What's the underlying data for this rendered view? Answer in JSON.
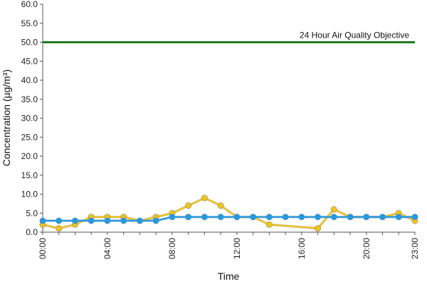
{
  "chart_data": {
    "type": "line",
    "title": "",
    "xlabel": "Time",
    "ylabel": "Concentration (µg/m³)",
    "ylim": [
      0,
      60
    ],
    "yticks": [
      "0.0",
      "5.0",
      "10.0",
      "15.0",
      "20.0",
      "25.0",
      "30.0",
      "35.0",
      "40.0",
      "45.0",
      "50.0",
      "55.0",
      "60.0"
    ],
    "xticks": [
      {
        "hour": 0,
        "label": "00:00"
      },
      {
        "hour": 4,
        "label": "04:00"
      },
      {
        "hour": 8,
        "label": "08:00"
      },
      {
        "hour": 12,
        "label": "12:00"
      },
      {
        "hour": 16,
        "label": "16:00"
      },
      {
        "hour": 20,
        "label": "20:00"
      },
      {
        "hour": 23,
        "label": "23:00"
      }
    ],
    "x": [
      0,
      1,
      2,
      3,
      4,
      5,
      6,
      7,
      8,
      9,
      10,
      11,
      12,
      13,
      14,
      15,
      16,
      17,
      18,
      19,
      20,
      21,
      22,
      23
    ],
    "series": [
      {
        "color": "#f0c419",
        "values": [
          2,
          1,
          2,
          4,
          4,
          4,
          3,
          4,
          5,
          7,
          9,
          7,
          4,
          4,
          2,
          null,
          null,
          1,
          6,
          4,
          4,
          4,
          5,
          3
        ]
      },
      {
        "color": "#1e9be9",
        "values": [
          3,
          3,
          3,
          3,
          3,
          3,
          3,
          3,
          4,
          4,
          4,
          4,
          4,
          4,
          4,
          4,
          4,
          4,
          4,
          4,
          4,
          4,
          4,
          4
        ]
      }
    ],
    "objective": {
      "label": "24 Hour Air Quality Objective",
      "value": 50,
      "color": "#1e7b1e"
    },
    "grid": false
  }
}
